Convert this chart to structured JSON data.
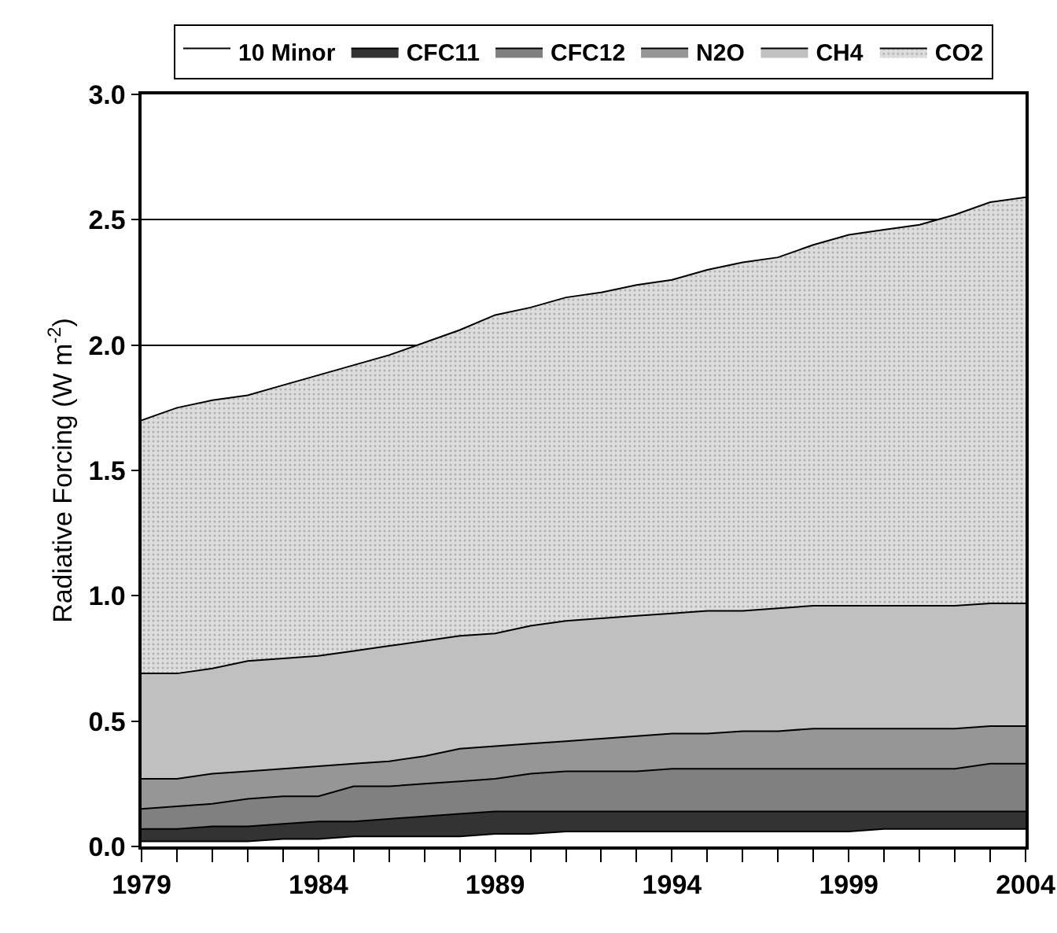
{
  "chart_data": {
    "type": "area",
    "stacked": true,
    "ylabel": "Radiative Forcing (W m$^{-2}$)",
    "x": [
      1979,
      1980,
      1981,
      1982,
      1983,
      1984,
      1985,
      1986,
      1987,
      1988,
      1989,
      1990,
      1991,
      1992,
      1993,
      1994,
      1995,
      1996,
      1997,
      1998,
      1999,
      2000,
      2001,
      2002,
      2003,
      2004
    ],
    "xlim": [
      1979,
      2004
    ],
    "xticks": [
      1979,
      {
        "value": 1980,
        "label": null
      },
      {
        "value": 1981,
        "label": null
      },
      {
        "value": 1982,
        "label": null
      },
      {
        "value": 1983,
        "label": null
      },
      1984,
      {
        "value": 1985,
        "label": null
      },
      {
        "value": 1986,
        "label": null
      },
      {
        "value": 1987,
        "label": null
      },
      {
        "value": 1988,
        "label": null
      },
      1989,
      {
        "value": 1990,
        "label": null
      },
      {
        "value": 1991,
        "label": null
      },
      {
        "value": 1992,
        "label": null
      },
      {
        "value": 1993,
        "label": null
      },
      1994,
      {
        "value": 1995,
        "label": null
      },
      {
        "value": 1996,
        "label": null
      },
      {
        "value": 1997,
        "label": null
      },
      {
        "value": 1998,
        "label": null
      },
      1999,
      {
        "value": 2000,
        "label": null
      },
      {
        "value": 2001,
        "label": null
      },
      {
        "value": 2002,
        "label": null
      },
      {
        "value": 2003,
        "label": null
      },
      2004
    ],
    "ylim": [
      0,
      3
    ],
    "yticks": [
      {
        "value": 0,
        "label": "0.0"
      },
      {
        "value": 0.5,
        "label": "0.5"
      },
      {
        "value": 1,
        "label": "1.0"
      },
      {
        "value": 1.5,
        "label": "1.5"
      },
      {
        "value": 2,
        "label": "2.0"
      },
      {
        "value": 2.5,
        "label": "2.5"
      },
      {
        "value": 3,
        "label": "3.0"
      }
    ],
    "grid": "y",
    "legend": "top",
    "series": [
      {
        "name": "10 Minor",
        "color": "#ffffff",
        "values": [
          0.02,
          0.02,
          0.02,
          0.02,
          0.03,
          0.03,
          0.04,
          0.04,
          0.04,
          0.04,
          0.05,
          0.05,
          0.06,
          0.06,
          0.06,
          0.06,
          0.06,
          0.06,
          0.06,
          0.06,
          0.06,
          0.07,
          0.07,
          0.07,
          0.07,
          0.07
        ]
      },
      {
        "name": "CFC11",
        "color": "#333333",
        "values": [
          0.05,
          0.05,
          0.06,
          0.06,
          0.06,
          0.07,
          0.06,
          0.07,
          0.08,
          0.09,
          0.09,
          0.09,
          0.08,
          0.08,
          0.08,
          0.08,
          0.08,
          0.08,
          0.08,
          0.08,
          0.08,
          0.07,
          0.07,
          0.07,
          0.07,
          0.07
        ]
      },
      {
        "name": "CFC12",
        "color": "#808080",
        "values": [
          0.08,
          0.09,
          0.09,
          0.11,
          0.11,
          0.1,
          0.14,
          0.13,
          0.13,
          0.13,
          0.13,
          0.15,
          0.16,
          0.16,
          0.16,
          0.17,
          0.17,
          0.17,
          0.17,
          0.17,
          0.17,
          0.17,
          0.17,
          0.17,
          0.19,
          0.19
        ]
      },
      {
        "name": "N2O",
        "color": "#969696",
        "values": [
          0.12,
          0.11,
          0.12,
          0.11,
          0.11,
          0.12,
          0.09,
          0.1,
          0.11,
          0.13,
          0.13,
          0.12,
          0.12,
          0.13,
          0.14,
          0.14,
          0.14,
          0.15,
          0.15,
          0.16,
          0.16,
          0.16,
          0.16,
          0.16,
          0.15,
          0.15
        ]
      },
      {
        "name": "CH4",
        "color": "#c0c0c0",
        "values": [
          0.42,
          0.42,
          0.42,
          0.44,
          0.44,
          0.44,
          0.45,
          0.46,
          0.46,
          0.45,
          0.45,
          0.47,
          0.48,
          0.48,
          0.48,
          0.48,
          0.49,
          0.48,
          0.49,
          0.49,
          0.49,
          0.49,
          0.49,
          0.49,
          0.49,
          0.49
        ]
      },
      {
        "name": "CO2",
        "color": "#dddddd",
        "values": [
          1.01,
          1.06,
          1.07,
          1.06,
          1.09,
          1.12,
          1.14,
          1.16,
          1.19,
          1.22,
          1.27,
          1.27,
          1.29,
          1.3,
          1.32,
          1.33,
          1.36,
          1.39,
          1.4,
          1.44,
          1.48,
          1.5,
          1.52,
          1.56,
          1.6,
          1.62
        ]
      }
    ]
  }
}
